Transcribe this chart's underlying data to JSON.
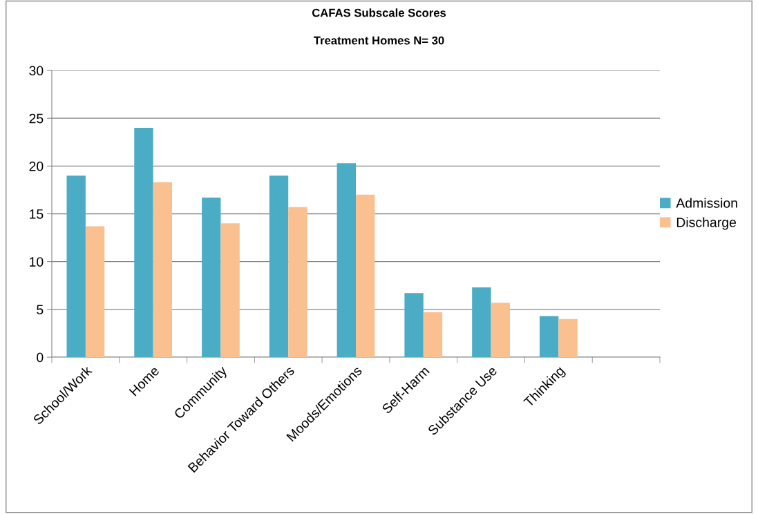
{
  "chart_data": {
    "type": "bar",
    "title": "CAFAS Subscale Scores",
    "subtitle": "Treatment Homes N= 30",
    "categories": [
      "School/Work",
      "Home",
      "Community",
      "Behavior Toward Others",
      "Moods/Emotions",
      "Self-Harm",
      "Substance Use",
      "Thinking",
      null
    ],
    "series": [
      {
        "name": "Admission",
        "color": "#4bacc6",
        "values": [
          19,
          24,
          16.7,
          19,
          20.3,
          6.7,
          7.3,
          4.3,
          null
        ]
      },
      {
        "name": "Discharge",
        "color": "#fac090",
        "values": [
          13.7,
          18.3,
          14,
          15.7,
          17,
          4.7,
          5.7,
          4,
          null
        ]
      }
    ],
    "ylim": [
      0,
      30
    ],
    "yticks": [
      0,
      5,
      10,
      15,
      20,
      25,
      30
    ],
    "grid": "y",
    "legend": "right"
  }
}
